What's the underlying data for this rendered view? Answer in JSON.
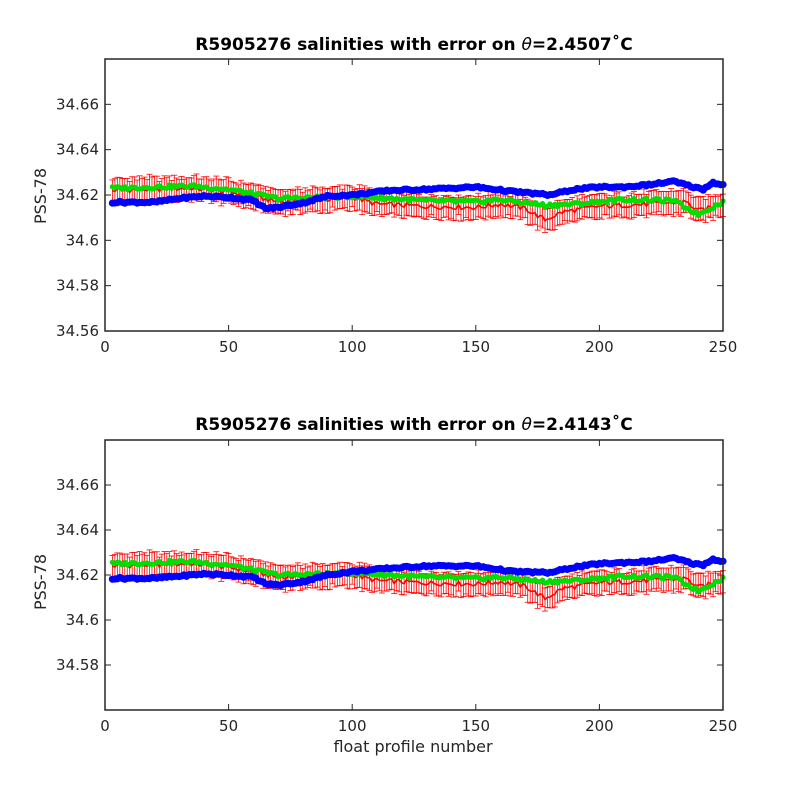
{
  "chart_data": [
    {
      "type": "scatter",
      "title_prefix": "R5905276 salinities with error on ",
      "title_theta": "θ",
      "title_suffix": "=2.4507˚C",
      "xlabel": "",
      "ylabel": "PSS-78",
      "xlim": [
        0,
        250
      ],
      "ylim": [
        34.56,
        34.68
      ],
      "xticks": [
        0,
        50,
        100,
        150,
        200,
        250
      ],
      "xtick_labels": [
        "0",
        "50",
        "100",
        "150",
        "200",
        "250"
      ],
      "yticks": [
        34.56,
        34.58,
        34.6,
        34.62,
        34.64,
        34.66
      ],
      "ytick_labels": [
        "34.56",
        "34.58",
        "34.6",
        "34.62",
        "34.64",
        "34.66"
      ],
      "profile_range": [
        3,
        250
      ],
      "series": [
        {
          "role": "float-salinity-blue",
          "color": "#0000ff",
          "marker": "circle",
          "anchors": [
            [
              3,
              34.6168
            ],
            [
              20,
              34.6168
            ],
            [
              30,
              34.6185
            ],
            [
              40,
              34.6195
            ],
            [
              50,
              34.619
            ],
            [
              60,
              34.6175
            ],
            [
              65,
              34.614
            ],
            [
              70,
              34.6145
            ],
            [
              80,
              34.6165
            ],
            [
              90,
              34.6195
            ],
            [
              100,
              34.62
            ],
            [
              115,
              34.622
            ],
            [
              130,
              34.6225
            ],
            [
              150,
              34.6235
            ],
            [
              165,
              34.6215
            ],
            [
              180,
              34.62
            ],
            [
              190,
              34.6225
            ],
            [
              200,
              34.6235
            ],
            [
              210,
              34.6235
            ],
            [
              220,
              34.6245
            ],
            [
              230,
              34.626
            ],
            [
              238,
              34.6235
            ],
            [
              242,
              34.6225
            ],
            [
              246,
              34.6255
            ],
            [
              250,
              34.6245
            ]
          ]
        },
        {
          "role": "mapped-salinity-green",
          "color": "#00dd00",
          "marker": "circle",
          "anchors": [
            [
              3,
              34.623
            ],
            [
              20,
              34.6235
            ],
            [
              35,
              34.624
            ],
            [
              50,
              34.6225
            ],
            [
              70,
              34.6185
            ],
            [
              90,
              34.619
            ],
            [
              100,
              34.6195
            ],
            [
              115,
              34.6185
            ],
            [
              130,
              34.6175
            ],
            [
              150,
              34.617
            ],
            [
              160,
              34.618
            ],
            [
              178,
              34.6155
            ],
            [
              190,
              34.616
            ],
            [
              210,
              34.618
            ],
            [
              230,
              34.6175
            ],
            [
              240,
              34.6115
            ],
            [
              250,
              34.617
            ]
          ]
        },
        {
          "role": "mapped-salinity-error-red",
          "color": "#ff0000",
          "marker": "errorbar",
          "error": 0.005,
          "anchors": [
            [
              3,
              34.622
            ],
            [
              20,
              34.6225
            ],
            [
              35,
              34.623
            ],
            [
              50,
              34.6215
            ],
            [
              70,
              34.617
            ],
            [
              90,
              34.618
            ],
            [
              100,
              34.619
            ],
            [
              110,
              34.616
            ],
            [
              130,
              34.615
            ],
            [
              150,
              34.6145
            ],
            [
              160,
              34.616
            ],
            [
              170,
              34.614
            ],
            [
              178,
              34.609
            ],
            [
              185,
              34.6125
            ],
            [
              200,
              34.615
            ],
            [
              220,
              34.616
            ],
            [
              235,
              34.617
            ],
            [
              240,
              34.613
            ],
            [
              250,
              34.616
            ]
          ]
        }
      ]
    },
    {
      "type": "scatter",
      "title_prefix": "R5905276 salinities with error on ",
      "title_theta": "θ",
      "title_suffix": "=2.4143˚C",
      "xlabel": "float profile number",
      "ylabel": "PSS-78",
      "xlim": [
        0,
        250
      ],
      "ylim": [
        34.56,
        34.68
      ],
      "xticks": [
        0,
        50,
        100,
        150,
        200,
        250
      ],
      "xtick_labels": [
        "0",
        "50",
        "100",
        "150",
        "200",
        "250"
      ],
      "yticks": [
        34.58,
        34.6,
        34.62,
        34.64,
        34.66
      ],
      "ytick_labels": [
        "34.58",
        "34.6",
        "34.62",
        "34.64",
        "34.66"
      ],
      "profile_range": [
        3,
        250
      ],
      "series": [
        {
          "role": "float-salinity-blue",
          "color": "#0000ff",
          "marker": "circle",
          "anchors": [
            [
              3,
              34.6185
            ],
            [
              20,
              34.6185
            ],
            [
              30,
              34.6195
            ],
            [
              40,
              34.6205
            ],
            [
              50,
              34.62
            ],
            [
              60,
              34.619
            ],
            [
              65,
              34.616
            ],
            [
              70,
              34.6155
            ],
            [
              80,
              34.617
            ],
            [
              90,
              34.62
            ],
            [
              100,
              34.6215
            ],
            [
              115,
              34.623
            ],
            [
              130,
              34.624
            ],
            [
              150,
              34.624
            ],
            [
              165,
              34.6215
            ],
            [
              180,
              34.621
            ],
            [
              190,
              34.6235
            ],
            [
              200,
              34.625
            ],
            [
              210,
              34.6255
            ],
            [
              220,
              34.626
            ],
            [
              230,
              34.6275
            ],
            [
              238,
              34.625
            ],
            [
              242,
              34.6245
            ],
            [
              246,
              34.627
            ],
            [
              250,
              34.626
            ]
          ]
        },
        {
          "role": "mapped-salinity-green",
          "color": "#00dd00",
          "marker": "circle",
          "anchors": [
            [
              3,
              34.625
            ],
            [
              20,
              34.6255
            ],
            [
              35,
              34.626
            ],
            [
              50,
              34.6245
            ],
            [
              70,
              34.62
            ],
            [
              90,
              34.6205
            ],
            [
              100,
              34.621
            ],
            [
              115,
              34.62
            ],
            [
              130,
              34.619
            ],
            [
              150,
              34.6185
            ],
            [
              160,
              34.619
            ],
            [
              178,
              34.617
            ],
            [
              190,
              34.6175
            ],
            [
              210,
              34.6195
            ],
            [
              230,
              34.619
            ],
            [
              240,
              34.613
            ],
            [
              250,
              34.6185
            ]
          ]
        },
        {
          "role": "mapped-salinity-error-red",
          "color": "#ff0000",
          "marker": "errorbar",
          "error": 0.005,
          "anchors": [
            [
              3,
              34.624
            ],
            [
              20,
              34.6245
            ],
            [
              35,
              34.625
            ],
            [
              50,
              34.6235
            ],
            [
              70,
              34.619
            ],
            [
              90,
              34.6195
            ],
            [
              100,
              34.62
            ],
            [
              110,
              34.6175
            ],
            [
              130,
              34.6165
            ],
            [
              150,
              34.616
            ],
            [
              160,
              34.617
            ],
            [
              170,
              34.615
            ],
            [
              178,
              34.6095
            ],
            [
              185,
              34.614
            ],
            [
              200,
              34.6165
            ],
            [
              220,
              34.6175
            ],
            [
              235,
              34.6185
            ],
            [
              240,
              34.6145
            ],
            [
              250,
              34.6175
            ]
          ]
        }
      ]
    }
  ]
}
